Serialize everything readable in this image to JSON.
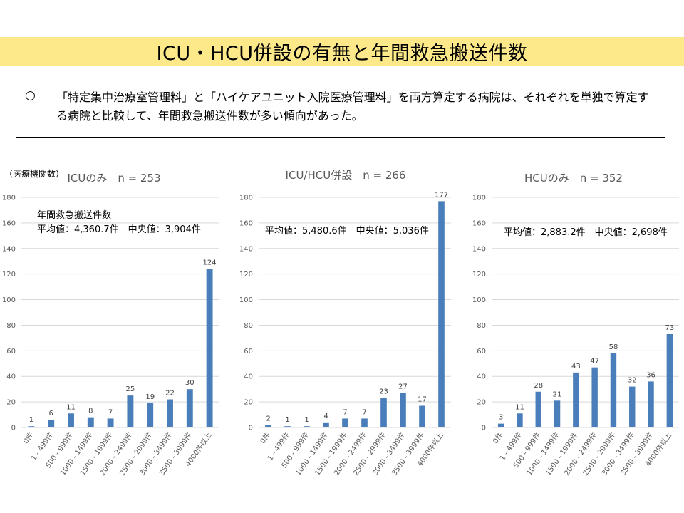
{
  "header": {
    "title": "ICU・HCU併設の有無と年間救急搬送件数"
  },
  "summary": {
    "bullet": "○",
    "text": "「特定集中治療室管理料」と「ハイケアユニット入院医療管理料」を両方算定する病院は、それぞれを単独で算定する病院と比較して、年間救急搬送件数が多い傾向があった。"
  },
  "unit_label": "（医療機関数）",
  "colors": {
    "bar": "#4a7ebb",
    "grid": "#d9d9d9"
  },
  "chart_data": [
    {
      "type": "bar",
      "title": "ICUのみ　n = 253",
      "annotations": [
        "年間救急搬送件数",
        "平均値：4,360.7件　中央値：3,904件"
      ],
      "categories": [
        "0件",
        "1 - 499件",
        "500 - 999件",
        "1000 - 1499件",
        "1500 - 1999件",
        "2000 - 2499件",
        "2500 - 2999件",
        "3000 - 3499件",
        "3500 - 3999件",
        "4000件以上"
      ],
      "values": [
        1,
        6,
        11,
        8,
        7,
        25,
        19,
        22,
        30,
        124
      ],
      "ylim": [
        0,
        180
      ],
      "yticks": [
        0,
        20,
        40,
        60,
        80,
        100,
        120,
        140,
        160,
        180
      ],
      "grid": true
    },
    {
      "type": "bar",
      "title": "ICU/HCU併設　n = 266",
      "annotations": [
        "平均値：5,480.6件　中央値：5,036件"
      ],
      "categories": [
        "0件",
        "1 - 499件",
        "500 - 999件",
        "1000 - 1499件",
        "1500 - 1999件",
        "2000 - 2499件",
        "2500 - 2999件",
        "3000 - 3499件",
        "3500 - 3999件",
        "4000件以上"
      ],
      "values": [
        2,
        1,
        1,
        4,
        7,
        7,
        23,
        27,
        17,
        177
      ],
      "ylim": [
        0,
        180
      ],
      "yticks": [
        0,
        20,
        40,
        60,
        80,
        100,
        120,
        140,
        160,
        180
      ],
      "grid": true
    },
    {
      "type": "bar",
      "title": "HCUのみ　n = 352",
      "annotations": [
        "平均値：2,883.2件　中央値：2,698件"
      ],
      "categories": [
        "0件",
        "1 - 499件",
        "500 - 999件",
        "1000 - 1499件",
        "1500 - 1999件",
        "2000 - 2499件",
        "2500 - 2999件",
        "3000 - 3499件",
        "3500 - 3999件",
        "4000件以上"
      ],
      "values": [
        3,
        11,
        28,
        21,
        43,
        47,
        58,
        32,
        36,
        73
      ],
      "ylim": [
        0,
        180
      ],
      "yticks": [
        0,
        20,
        40,
        60,
        80,
        100,
        120,
        140,
        160,
        180
      ],
      "grid": true
    }
  ]
}
